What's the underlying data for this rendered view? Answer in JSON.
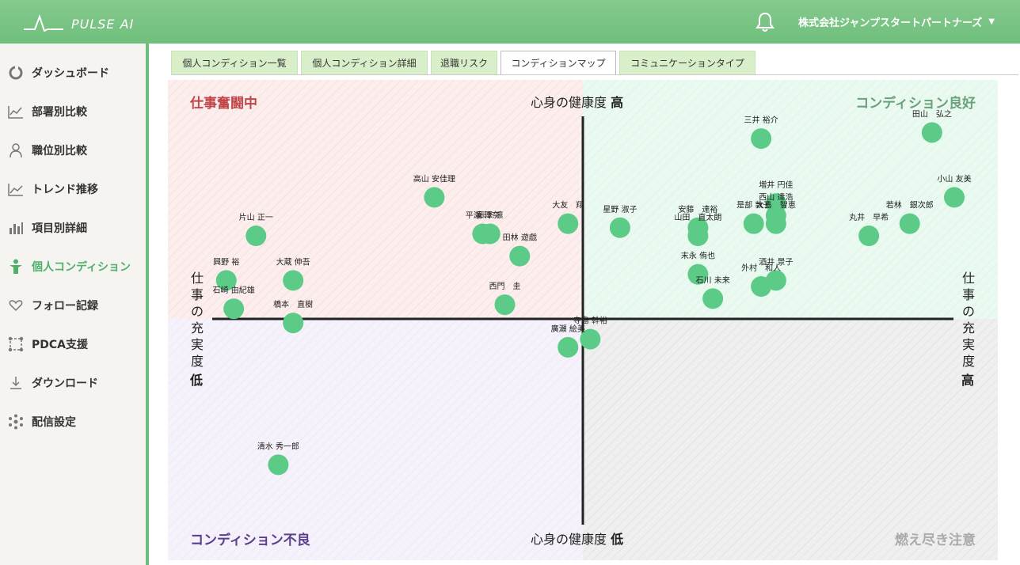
{
  "app": {
    "logo_text": "PULSE AI",
    "company": "株式会社ジャンプスタートパートナーズ",
    "colors": {
      "header": "#76c281",
      "accent": "#4fb06a",
      "dot": "#5ccb87"
    }
  },
  "sidebar": {
    "items": [
      {
        "label": "ダッシュボード",
        "icon": "dashboard-icon"
      },
      {
        "label": "部署別比較",
        "icon": "department-chart-icon"
      },
      {
        "label": "職位別比較",
        "icon": "position-people-icon"
      },
      {
        "label": "トレンド推移",
        "icon": "trend-line-icon"
      },
      {
        "label": "項目別詳細",
        "icon": "bar-detail-icon"
      },
      {
        "label": "個人コンディション",
        "icon": "person-icon",
        "active": true
      },
      {
        "label": "フォロー記録",
        "icon": "hands-heart-icon"
      },
      {
        "label": "PDCA支援",
        "icon": "pdca-cycle-icon"
      },
      {
        "label": "ダウンロード",
        "icon": "download-icon"
      },
      {
        "label": "配信設定",
        "icon": "distribution-icon"
      }
    ]
  },
  "tabs": [
    {
      "label": "個人コンディション一覧"
    },
    {
      "label": "個人コンディション詳細"
    },
    {
      "label": "退職リスク"
    },
    {
      "label": "コンディションマップ",
      "active": true
    },
    {
      "label": "コミュニケーションタイプ"
    }
  ],
  "map": {
    "quadrants": {
      "top_left": "仕事奮闘中",
      "top_right": "コンディション良好",
      "bottom_left": "コンディション不良",
      "bottom_right": "燃え尽き注意"
    },
    "y_axis": {
      "name": "心身の健康度",
      "high": "高",
      "low": "低"
    },
    "x_axis": {
      "name": "仕事の充実度",
      "high": "高",
      "low": "低"
    }
  },
  "chart_data": {
    "type": "scatter",
    "xlabel": "仕事の充実度",
    "ylabel": "心身の健康度",
    "xlim": [
      -100,
      100
    ],
    "ylim": [
      -100,
      100
    ],
    "points": [
      {
        "name": "三井 裕介",
        "x": 48,
        "y": 89
      },
      {
        "name": "田山　弘之",
        "x": 94,
        "y": 92
      },
      {
        "name": "増井 円佳",
        "x": 52,
        "y": 57
      },
      {
        "name": "西山 達浩",
        "x": 52,
        "y": 51
      },
      {
        "name": "小山 友美",
        "x": 100,
        "y": 60
      },
      {
        "name": "星野 淑子",
        "x": 10,
        "y": 45
      },
      {
        "name": "安藤　達裕",
        "x": 31,
        "y": 45
      },
      {
        "name": "是部 敦子",
        "x": 46,
        "y": 47
      },
      {
        "name": "大島　智恵",
        "x": 52,
        "y": 47
      },
      {
        "name": "山田　直太朗",
        "x": 31,
        "y": 41
      },
      {
        "name": "若林　銀次郎",
        "x": 88,
        "y": 47
      },
      {
        "name": "丸井　早希",
        "x": 77,
        "y": 41
      },
      {
        "name": "大友　翔",
        "x": -4,
        "y": 47
      },
      {
        "name": "高山 安佳理",
        "x": -40,
        "y": 60
      },
      {
        "name": "平瀬 玲奈",
        "x": -27,
        "y": 42
      },
      {
        "name": "藤澤 凛",
        "x": -25,
        "y": 42
      },
      {
        "name": "田林 遊戯",
        "x": -17,
        "y": 31
      },
      {
        "name": "片山 正一",
        "x": -88,
        "y": 41
      },
      {
        "name": "大蔵 伸吾",
        "x": -78,
        "y": 19
      },
      {
        "name": "興野 裕",
        "x": -96,
        "y": 19
      },
      {
        "name": "石崎 由紀雄",
        "x": -94,
        "y": 5
      },
      {
        "name": "橋本　直樹",
        "x": -78,
        "y": -2
      },
      {
        "name": "西門　圭",
        "x": -21,
        "y": 7
      },
      {
        "name": "末永 侑也",
        "x": 31,
        "y": 22
      },
      {
        "name": "酒井 景子",
        "x": 52,
        "y": 19
      },
      {
        "name": "外村　和人",
        "x": 48,
        "y": 16
      },
      {
        "name": "石川 未来",
        "x": 35,
        "y": 10
      },
      {
        "name": "寺島 幹裕",
        "x": 2,
        "y": -10
      },
      {
        "name": "廣瀬 絵美",
        "x": -4,
        "y": -14
      },
      {
        "name": "清水 秀一郎",
        "x": -82,
        "y": -72
      }
    ]
  }
}
